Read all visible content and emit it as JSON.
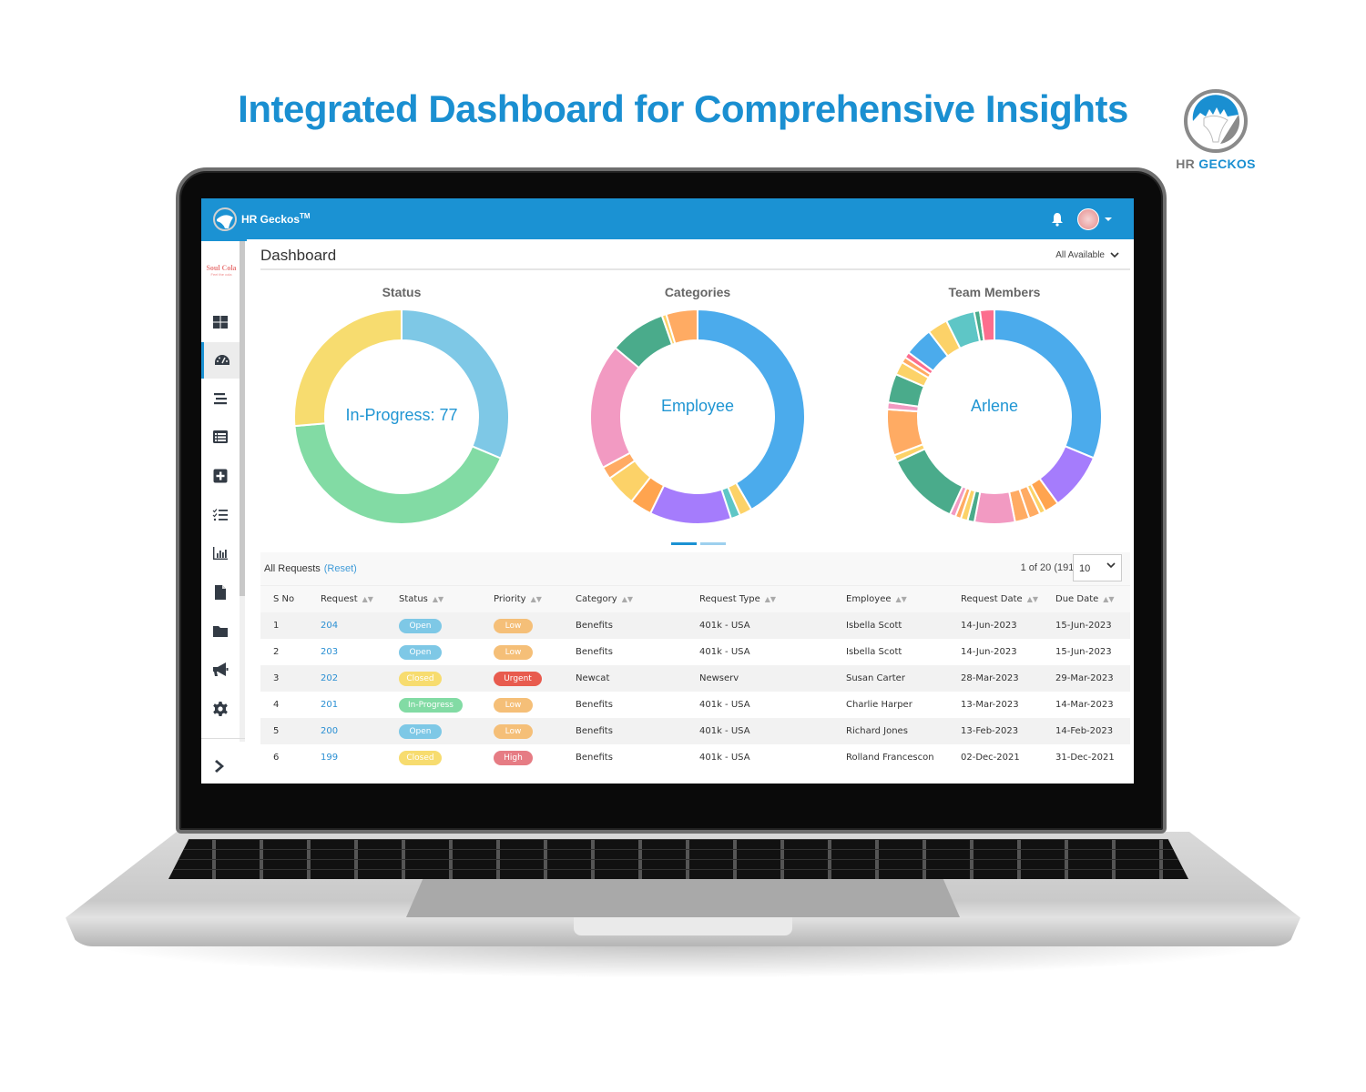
{
  "headline": "Integrated Dashboard for Comprehensive Insights",
  "brand": {
    "name_gray": "HR",
    "name_accent": "GECKOS",
    "colors": {
      "blue": "#1a8fd1",
      "gray": "#7a7a7a"
    }
  },
  "app": {
    "name": "HR Geckos",
    "trademark": "TM",
    "topbar_color": "#1b92d3",
    "icons": {
      "notifications": "bell-icon",
      "user_menu": "avatar",
      "user_menu_caret": "caret-down-icon"
    }
  },
  "sidebar": {
    "logo_text": "Soul Cola",
    "logo_subtext": "Feel the cola",
    "items": [
      {
        "id": "tiles",
        "icon": "grid-icon",
        "active": false
      },
      {
        "id": "dashboard",
        "icon": "speedometer-icon",
        "active": true
      },
      {
        "id": "list",
        "icon": "align-lines-icon",
        "active": false
      },
      {
        "id": "requests",
        "icon": "list-alt-icon",
        "active": false
      },
      {
        "id": "new-request",
        "icon": "plus-square-icon",
        "active": false
      },
      {
        "id": "tasks",
        "icon": "checklist-icon",
        "active": false
      },
      {
        "id": "reports",
        "icon": "bar-chart-icon",
        "active": false
      },
      {
        "id": "documents",
        "icon": "file-icon",
        "active": false
      },
      {
        "id": "folders",
        "icon": "folder-icon",
        "active": false
      },
      {
        "id": "announcements",
        "icon": "megaphone-icon",
        "active": false
      },
      {
        "id": "settings",
        "icon": "gear-icon",
        "active": false
      }
    ],
    "expand_icon": "chevron-right-icon"
  },
  "dashboard": {
    "title": "Dashboard",
    "filter_label": "All Available",
    "charts": {
      "status": {
        "title": "Status",
        "center_label": "In-Progress: 77"
      },
      "categories": {
        "title": "Categories",
        "center_label": "Employee"
      },
      "team": {
        "title": "Team Members",
        "center_label": "Arlene"
      }
    },
    "pager": {
      "pages": 2,
      "active": 1
    }
  },
  "requests": {
    "title": "All Requests",
    "reset_label": "(Reset)",
    "page_info": "1 of 20 (191)",
    "page_size": "10",
    "columns": [
      "S No",
      "Request",
      "Status",
      "Priority",
      "Category",
      "Request Type",
      "Employee",
      "Request Date",
      "Due Date"
    ],
    "rows": [
      {
        "sno": "1",
        "request": "204",
        "status": "Open",
        "priority": "Low",
        "category": "Benefits",
        "type": "401k - USA",
        "employee": "Isbella Scott",
        "request_date": "14-Jun-2023",
        "due_date": "15-Jun-2023"
      },
      {
        "sno": "2",
        "request": "203",
        "status": "Open",
        "priority": "Low",
        "category": "Benefits",
        "type": "401k - USA",
        "employee": "Isbella Scott",
        "request_date": "14-Jun-2023",
        "due_date": "15-Jun-2023"
      },
      {
        "sno": "3",
        "request": "202",
        "status": "Closed",
        "priority": "Urgent",
        "category": "Newcat",
        "type": "Newserv",
        "employee": "Susan Carter",
        "request_date": "28-Mar-2023",
        "due_date": "29-Mar-2023"
      },
      {
        "sno": "4",
        "request": "201",
        "status": "In-Progress",
        "priority": "Low",
        "category": "Benefits",
        "type": "401k - USA",
        "employee": "Charlie Harper",
        "request_date": "13-Mar-2023",
        "due_date": "14-Mar-2023"
      },
      {
        "sno": "5",
        "request": "200",
        "status": "Open",
        "priority": "Low",
        "category": "Benefits",
        "type": "401k - USA",
        "employee": "Richard Jones",
        "request_date": "13-Feb-2023",
        "due_date": "14-Feb-2023"
      },
      {
        "sno": "6",
        "request": "199",
        "status": "Closed",
        "priority": "High",
        "category": "Benefits",
        "type": "401k - USA",
        "employee": "Rolland Francescon",
        "request_date": "02-Dec-2021",
        "due_date": "31-Dec-2021"
      }
    ],
    "status_colors": {
      "Open": "#7ec8e6",
      "Closed": "#f7dc6f",
      "In-Progress": "#82dba4"
    },
    "priority_colors": {
      "Low": "#f5bf78",
      "Urgent": "#e85b4e",
      "High": "#e67c84"
    }
  },
  "chart_data": [
    {
      "type": "pie",
      "title": "Status",
      "donut": true,
      "center_label": "In-Progress: 77",
      "categories": [
        "Open",
        "In-Progress",
        "Closed"
      ],
      "values": [
        57,
        77,
        48
      ],
      "colors": [
        "#7ec8e6",
        "#82dba4",
        "#f7dc6f"
      ]
    },
    {
      "type": "pie",
      "title": "Categories",
      "donut": true,
      "center_label": "Employee",
      "values": [
        44,
        2,
        1.5,
        13,
        3.5,
        5,
        2,
        20,
        9,
        0.7,
        5
      ],
      "colors": [
        "#4babec",
        "#fcd268",
        "#5ec6c6",
        "#a57cfc",
        "#ffa44f",
        "#fcd268",
        "#ffab63",
        "#f29ac2",
        "#4aab8b",
        "#fcd268",
        "#ffab63"
      ]
    },
    {
      "type": "pie",
      "title": "Team Members",
      "donut": true,
      "center_label": "Arlene",
      "values": [
        36,
        10,
        2.5,
        1,
        2,
        2.5,
        7,
        1.2,
        1.2,
        1,
        1,
        13,
        1.2,
        8,
        1.2,
        5,
        2.3,
        1,
        1,
        5,
        3.5,
        5,
        1,
        2.5
      ],
      "colors": [
        "#4babec",
        "#a57cfc",
        "#ffa44f",
        "#fcd268",
        "#ffab63",
        "#ffab63",
        "#f29ac2",
        "#4aab8b",
        "#fcd268",
        "#ffab63",
        "#f29ac2",
        "#4aab8b",
        "#fcd268",
        "#ffab63",
        "#f29ac2",
        "#4aab8b",
        "#fcd268",
        "#ffab63",
        "#fc6e8e",
        "#4babec",
        "#fcd268",
        "#5ec6c6",
        "#4aab8b",
        "#fc6e8e"
      ]
    }
  ]
}
